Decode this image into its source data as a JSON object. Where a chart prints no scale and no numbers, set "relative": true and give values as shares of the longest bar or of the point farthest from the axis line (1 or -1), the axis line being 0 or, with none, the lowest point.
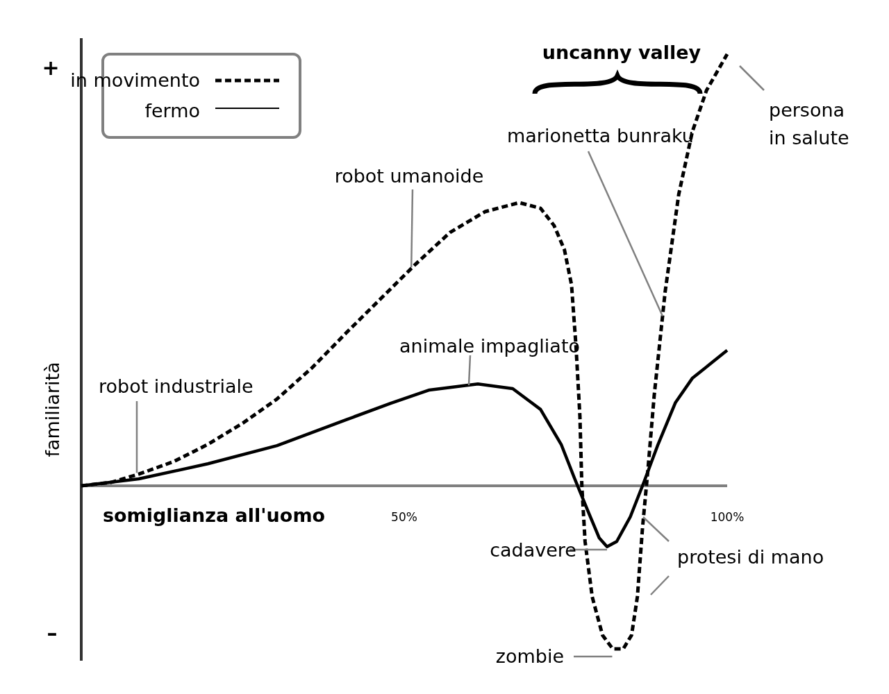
{
  "chart_data": {
    "type": "line",
    "relative": true,
    "xlabel": "somiglianza all'uomo",
    "ylabel": "familiarità",
    "xlim": [
      0,
      100
    ],
    "xticks": [
      {
        "value": 50,
        "label": "50%"
      },
      {
        "value": 100,
        "label": "100%"
      }
    ],
    "legend": "top left",
    "grid": false,
    "marker": "none",
    "series": [
      {
        "name": "in movimento",
        "color": "#000000",
        "line_style": "dashed",
        "x": [
          0,
          4.6,
          8.9,
          14.3,
          19.6,
          25.0,
          30.3,
          35.7,
          41.0,
          46.4,
          51.8,
          57.1,
          62.5,
          67.8,
          71.1,
          73.2,
          74.8,
          75.9,
          76.6,
          77.2,
          77.5,
          78.0,
          79.1,
          80.7,
          82.3,
          83.9,
          85.2,
          86.1,
          86.9,
          87.7,
          88.7,
          90.4,
          92.5,
          94.6,
          96.8,
          100
        ],
        "values": [
          0,
          0.008,
          0.027,
          0.056,
          0.096,
          0.145,
          0.201,
          0.273,
          0.354,
          0.434,
          0.514,
          0.587,
          0.635,
          0.656,
          0.643,
          0.603,
          0.547,
          0.466,
          0.322,
          0.161,
          0,
          -0.129,
          -0.257,
          -0.346,
          -0.378,
          -0.378,
          -0.346,
          -0.257,
          -0.096,
          0.032,
          0.209,
          0.45,
          0.675,
          0.82,
          0.916,
          1
        ]
      },
      {
        "name": "fermo",
        "color": "#000000",
        "line_style": "solid",
        "x": [
          0,
          8.9,
          19.6,
          30.3,
          41.0,
          47.9,
          53.9,
          61.4,
          66.8,
          71.1,
          74.3,
          76.4,
          78.6,
          80.2,
          81.4,
          82.9,
          85.0,
          87.1,
          89.3,
          92.0,
          94.6,
          100
        ],
        "values": [
          0,
          0.016,
          0.051,
          0.093,
          0.153,
          0.191,
          0.222,
          0.236,
          0.225,
          0.177,
          0.096,
          0.016,
          -0.064,
          -0.121,
          -0.141,
          -0.129,
          -0.072,
          0.008,
          0.096,
          0.193,
          0.249,
          0.314
        ]
      }
    ],
    "annotations": [
      "uncanny valley",
      {
        "text": "robot industriale",
        "x": 8.6,
        "y": 0.03
      },
      {
        "text": "robot umanoide",
        "x": 51.1,
        "y": 0.506
      },
      {
        "text": "animale impagliato",
        "x": 60.0,
        "y": 0.233
      },
      {
        "text": "marionetta bunraku",
        "x": 90.0,
        "y": 0.393
      },
      "persona\nin salute",
      {
        "text": "cadavere",
        "x": 81.4,
        "y": -0.141
      },
      "protesi di mano",
      {
        "text": "zombie",
        "x": 82.2,
        "y": -0.378
      },
      "+",
      "–"
    ]
  }
}
